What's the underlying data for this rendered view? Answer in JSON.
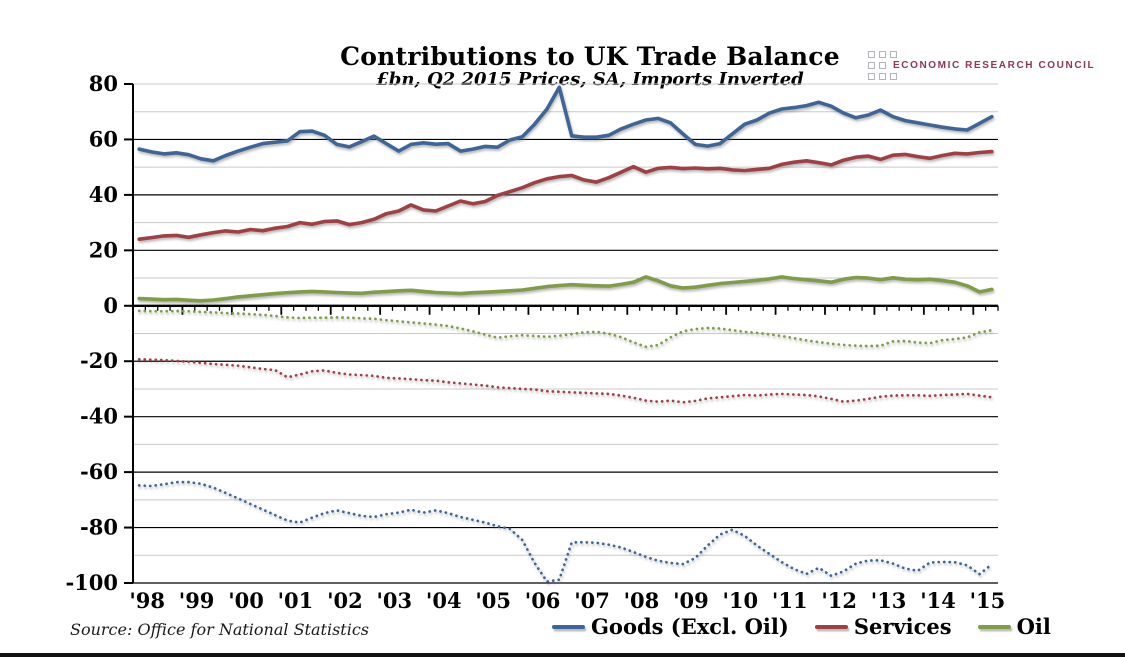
{
  "header": {
    "title": "Contributions to UK Trade Balance",
    "subtitle": "£bn, Q2 2015 Prices, SA, Imports Inverted"
  },
  "logo": {
    "text": "ECONOMIC RESEARCH COUNCIL",
    "text_color": "#8F3359",
    "square_border_color": "#b4b4bc"
  },
  "source": {
    "text": "Source: Office for National Statistics"
  },
  "legend": [
    {
      "label": "Goods (Excl. Oil)",
      "color": "#3E6596"
    },
    {
      "label": "Services",
      "color": "#9E4044"
    },
    {
      "label": "Oil",
      "color": "#7F9C49"
    }
  ],
  "colors": {
    "goods": "#3E6596",
    "services": "#9E4044",
    "oil": "#7F9C49",
    "major_grid": "#000000",
    "minor_grid": "#c9c9c9",
    "axis": "#000000"
  },
  "chart_data": {
    "type": "line",
    "title": "Contributions to UK Trade Balance",
    "subtitle": "£bn, Q2 2015 Prices, SA, Imports Inverted",
    "x_start": "1998Q1",
    "x_end": "2015Q2",
    "frequency": "quarterly",
    "points_per_series": 70,
    "x_tick_labels": [
      "'98",
      "'99",
      "'00",
      "'01",
      "'02",
      "'03",
      "'04",
      "'05",
      "'06",
      "'07",
      "'08",
      "'09",
      "'10",
      "'11",
      "'12",
      "'13",
      "'14",
      "'15"
    ],
    "y_tick_labels": [
      "80",
      "60",
      "40",
      "20",
      "0",
      "-20",
      "-40",
      "-60",
      "-80",
      "-100"
    ],
    "ylim": [
      -100,
      80
    ],
    "major_grid_step": 20,
    "minor_grid_step": 10,
    "legend_position": "bottom",
    "series": [
      {
        "name": "Goods (Excl. Oil) exports",
        "legend": "Goods (Excl. Oil)",
        "style": "solid",
        "color": "#3E6596",
        "values": [
          56.5,
          55.5,
          54.8,
          55.2,
          54.5,
          53.0,
          52.3,
          54.2,
          55.8,
          57.2,
          58.5,
          59.0,
          59.5,
          62.8,
          63.0,
          61.5,
          58.2,
          57.3,
          59.2,
          61.2,
          58.5,
          55.8,
          58.2,
          58.8,
          58.3,
          58.5,
          55.8,
          56.5,
          57.5,
          57.2,
          59.8,
          61.0,
          65.5,
          71.0,
          78.8,
          61.3,
          60.8,
          60.8,
          61.5,
          63.8,
          65.5,
          67.0,
          67.6,
          66.0,
          62.0,
          58.2,
          57.6,
          58.5,
          62.0,
          65.5,
          67.0,
          69.5,
          71.0,
          71.5,
          72.2,
          73.4,
          72.0,
          69.5,
          67.8,
          68.8,
          70.6,
          68.2,
          66.8,
          66.0,
          65.2,
          64.4,
          63.8,
          63.4,
          65.8,
          68.2
        ]
      },
      {
        "name": "Services exports",
        "legend": "Services",
        "style": "solid",
        "color": "#9E4044",
        "values": [
          24.0,
          24.6,
          25.2,
          25.4,
          24.7,
          25.6,
          26.4,
          27.0,
          26.6,
          27.5,
          27.1,
          28.0,
          28.6,
          30.0,
          29.4,
          30.4,
          30.6,
          29.3,
          30.0,
          31.2,
          33.2,
          34.2,
          36.4,
          34.6,
          34.2,
          36.0,
          37.8,
          36.8,
          37.6,
          39.8,
          41.2,
          42.6,
          44.4,
          45.8,
          46.6,
          47.0,
          45.4,
          44.6,
          46.2,
          48.2,
          50.2,
          48.2,
          49.6,
          49.9,
          49.5,
          49.7,
          49.4,
          49.6,
          49.0,
          48.8,
          49.2,
          49.6,
          51.0,
          51.8,
          52.3,
          51.6,
          50.8,
          52.5,
          53.6,
          54.0,
          52.8,
          54.3,
          54.6,
          53.8,
          53.2,
          54.2,
          55.0,
          54.8,
          55.3,
          55.6
        ]
      },
      {
        "name": "Oil exports",
        "legend": "Oil",
        "style": "solid",
        "color": "#7F9C49",
        "values": [
          2.6,
          2.4,
          2.2,
          2.3,
          2.0,
          1.8,
          2.1,
          2.6,
          3.2,
          3.6,
          4.0,
          4.4,
          4.7,
          5.0,
          5.2,
          5.0,
          4.8,
          4.6,
          4.5,
          4.9,
          5.1,
          5.4,
          5.6,
          5.2,
          4.8,
          4.6,
          4.4,
          4.7,
          4.9,
          5.1,
          5.4,
          5.7,
          6.3,
          6.9,
          7.3,
          7.6,
          7.4,
          7.2,
          7.1,
          7.7,
          8.5,
          10.4,
          9.0,
          7.2,
          6.4,
          6.7,
          7.4,
          8.0,
          8.4,
          8.8,
          9.2,
          9.7,
          10.4,
          9.8,
          9.4,
          9.0,
          8.5,
          9.6,
          10.2,
          10.0,
          9.4,
          10.1,
          9.6,
          9.4,
          9.6,
          9.1,
          8.5,
          7.2,
          5.0,
          5.9
        ]
      },
      {
        "name": "Oil imports (inverted)",
        "legend": "Oil",
        "style": "dotted",
        "color": "#7F9C49",
        "values": [
          -1.8,
          -2.0,
          -2.0,
          -1.9,
          -2.0,
          -2.2,
          -2.4,
          -2.6,
          -2.8,
          -3.0,
          -3.3,
          -3.7,
          -4.2,
          -4.4,
          -4.3,
          -4.3,
          -4.2,
          -4.3,
          -4.5,
          -4.7,
          -5.2,
          -5.6,
          -6.0,
          -6.4,
          -6.8,
          -7.3,
          -8.2,
          -9.2,
          -10.4,
          -11.5,
          -11.0,
          -10.6,
          -10.9,
          -11.2,
          -10.8,
          -10.2,
          -9.6,
          -9.4,
          -10.1,
          -11.3,
          -13.2,
          -14.8,
          -14.2,
          -11.4,
          -9.2,
          -8.4,
          -8.0,
          -8.2,
          -8.8,
          -9.4,
          -9.8,
          -10.3,
          -10.9,
          -11.7,
          -12.5,
          -13.1,
          -13.7,
          -14.1,
          -14.4,
          -14.5,
          -14.4,
          -12.8,
          -12.7,
          -13.3,
          -13.5,
          -12.4,
          -12.0,
          -11.4,
          -9.6,
          -8.8
        ]
      },
      {
        "name": "Services imports (inverted)",
        "legend": "Services",
        "style": "dotted",
        "color": "#9E4044",
        "values": [
          -19.3,
          -19.5,
          -19.6,
          -19.9,
          -20.2,
          -20.6,
          -21.0,
          -21.3,
          -21.6,
          -22.2,
          -22.8,
          -23.2,
          -25.8,
          -24.8,
          -23.6,
          -23.3,
          -24.2,
          -24.8,
          -25.0,
          -25.3,
          -26.0,
          -26.2,
          -26.5,
          -26.8,
          -27.0,
          -27.6,
          -28.0,
          -28.4,
          -28.8,
          -29.4,
          -29.7,
          -30.0,
          -30.2,
          -30.8,
          -31.0,
          -31.2,
          -31.4,
          -31.6,
          -31.8,
          -32.4,
          -33.2,
          -34.2,
          -34.6,
          -34.2,
          -34.8,
          -34.3,
          -33.4,
          -33.0,
          -32.6,
          -32.2,
          -32.4,
          -32.0,
          -31.8,
          -32.0,
          -32.2,
          -32.7,
          -33.6,
          -34.6,
          -34.2,
          -33.6,
          -32.8,
          -32.4,
          -32.3,
          -32.3,
          -32.5,
          -32.2,
          -32.0,
          -31.8,
          -32.4,
          -33.0
        ]
      },
      {
        "name": "Goods (Excl. Oil) imports (inverted)",
        "legend": "Goods (Excl. Oil)",
        "style": "dotted",
        "color": "#3E6596",
        "values": [
          -64.8,
          -65.0,
          -64.4,
          -63.6,
          -63.6,
          -64.2,
          -65.6,
          -67.5,
          -69.5,
          -71.5,
          -73.5,
          -75.5,
          -77.5,
          -78.2,
          -76.4,
          -74.8,
          -73.8,
          -74.8,
          -75.8,
          -76.2,
          -75.2,
          -74.6,
          -73.6,
          -74.6,
          -73.8,
          -74.8,
          -76.2,
          -77.2,
          -78.2,
          -79.5,
          -80.5,
          -84.5,
          -92.8,
          -99.5,
          -98.8,
          -85.4,
          -85.3,
          -85.5,
          -86.2,
          -87.2,
          -88.8,
          -90.6,
          -92.0,
          -92.8,
          -93.2,
          -91.0,
          -86.5,
          -82.5,
          -80.8,
          -83.0,
          -86.5,
          -89.5,
          -92.5,
          -95.0,
          -96.7,
          -94.5,
          -97.4,
          -95.8,
          -93.0,
          -91.9,
          -91.8,
          -93.0,
          -94.8,
          -95.6,
          -92.6,
          -92.4,
          -92.5,
          -93.6,
          -96.8,
          -93.3
        ]
      }
    ]
  }
}
